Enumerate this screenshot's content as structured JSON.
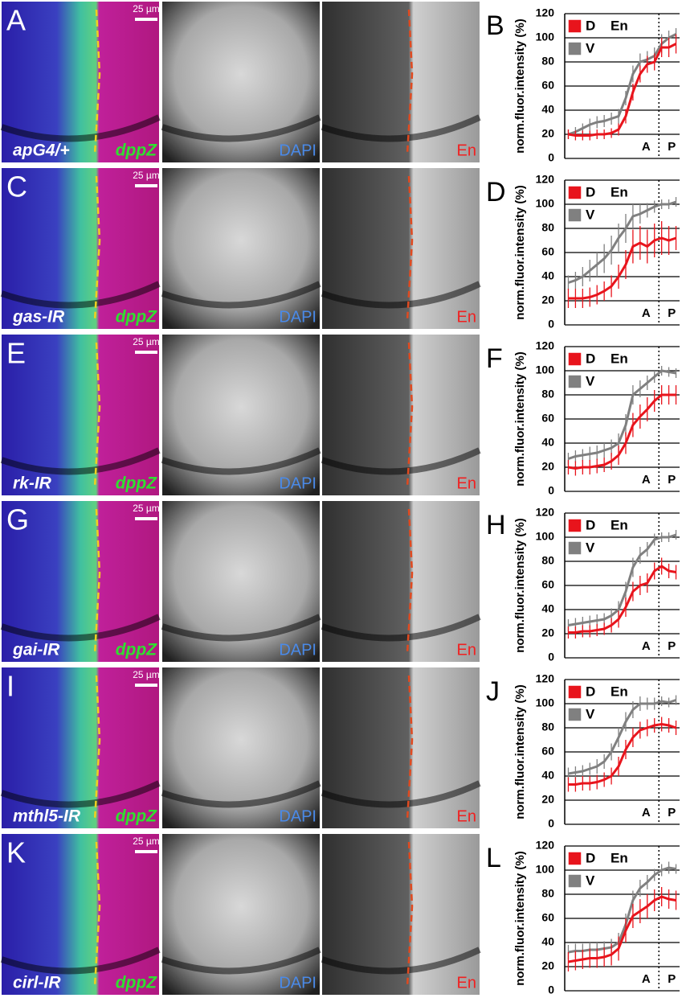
{
  "panels": [
    {
      "letter": "A",
      "genotype": "apG4/+",
      "reporter": "dppZ",
      "scale_bar": "25 µm",
      "channels": [
        "DAPI",
        "En"
      ]
    },
    {
      "letter": "C",
      "genotype": "gas-IR",
      "reporter": "dppZ",
      "scale_bar": "25 µm",
      "channels": [
        "DAPI",
        "En"
      ]
    },
    {
      "letter": "E",
      "genotype": "rk-IR",
      "reporter": "dppZ",
      "scale_bar": "25 µm",
      "channels": [
        "DAPI",
        "En"
      ]
    },
    {
      "letter": "G",
      "genotype": "gai-IR",
      "reporter": "dppZ",
      "scale_bar": "25 µm",
      "channels": [
        "DAPI",
        "En"
      ]
    },
    {
      "letter": "I",
      "genotype": "mthl5-IR",
      "reporter": "dppZ",
      "scale_bar": "25 µm",
      "channels": [
        "DAPI",
        "En"
      ]
    },
    {
      "letter": "K",
      "genotype": "cirl-IR",
      "reporter": "dppZ",
      "scale_bar": "25 µm",
      "channels": [
        "DAPI",
        "En"
      ]
    }
  ],
  "chart_data": [
    {
      "type": "line",
      "letter": "B",
      "y_label": "norm.fluor.intensity (%)",
      "legend_title": "En",
      "annotations": [
        "A",
        "P"
      ],
      "categories": [
        null,
        null,
        null,
        null,
        null,
        null,
        null,
        null,
        null,
        null,
        null,
        null,
        null,
        null,
        null,
        null
      ],
      "ylim": [
        0,
        120
      ],
      "yticks": [
        0,
        20,
        40,
        60,
        80,
        100,
        120
      ],
      "grid": true,
      "series": [
        {
          "name": "D",
          "color": "#e8141c",
          "values": [
            20,
            19,
            19,
            19,
            20,
            20,
            21,
            24,
            35,
            55,
            70,
            78,
            80,
            92,
            92,
            95
          ],
          "errors": [
            4,
            4,
            4,
            4,
            4,
            4,
            4,
            5,
            6,
            7,
            7,
            7,
            7,
            8,
            8,
            8
          ]
        },
        {
          "name": "V",
          "color": "#808080",
          "values": [
            20,
            22,
            25,
            28,
            30,
            31,
            33,
            35,
            50,
            70,
            80,
            82,
            85,
            95,
            100,
            103
          ],
          "errors": [
            4,
            4,
            4,
            5,
            5,
            5,
            5,
            6,
            6,
            7,
            7,
            7,
            7,
            8,
            6,
            5
          ]
        }
      ]
    },
    {
      "type": "line",
      "letter": "D",
      "y_label": "norm.fluor.intensity (%)",
      "legend_title": "En",
      "annotations": [
        "A",
        "P"
      ],
      "categories": [
        null,
        null,
        null,
        null,
        null,
        null,
        null,
        null,
        null,
        null,
        null,
        null,
        null,
        null,
        null,
        null
      ],
      "ylim": [
        0,
        120
      ],
      "yticks": [
        0,
        20,
        40,
        60,
        80,
        100,
        120
      ],
      "grid": true,
      "series": [
        {
          "name": "D",
          "color": "#e8141c",
          "values": [
            22,
            22,
            22,
            23,
            25,
            28,
            32,
            40,
            50,
            65,
            68,
            65,
            70,
            72,
            70,
            72
          ],
          "errors": [
            8,
            8,
            8,
            8,
            8,
            8,
            9,
            10,
            12,
            14,
            14,
            14,
            14,
            14,
            12,
            10
          ]
        },
        {
          "name": "V",
          "color": "#808080",
          "values": [
            35,
            37,
            40,
            45,
            50,
            55,
            62,
            72,
            80,
            90,
            92,
            95,
            98,
            100,
            100,
            102
          ],
          "errors": [
            6,
            7,
            8,
            9,
            10,
            12,
            12,
            12,
            12,
            10,
            8,
            6,
            5,
            4,
            4,
            4
          ]
        }
      ]
    },
    {
      "type": "line",
      "letter": "F",
      "y_label": "norm.fluor.intensity (%)",
      "legend_title": "En",
      "annotations": [
        "A",
        "P"
      ],
      "categories": [
        null,
        null,
        null,
        null,
        null,
        null,
        null,
        null,
        null,
        null,
        null,
        null,
        null,
        null,
        null,
        null
      ],
      "ylim": [
        0,
        120
      ],
      "yticks": [
        0,
        20,
        40,
        60,
        80,
        100,
        120
      ],
      "grid": true,
      "series": [
        {
          "name": "D",
          "color": "#e8141c",
          "values": [
            20,
            19,
            20,
            20,
            21,
            22,
            25,
            30,
            40,
            55,
            62,
            68,
            75,
            80,
            80,
            80
          ],
          "errors": [
            6,
            6,
            6,
            6,
            6,
            6,
            7,
            8,
            9,
            10,
            10,
            10,
            9,
            8,
            8,
            8
          ]
        },
        {
          "name": "V",
          "color": "#808080",
          "values": [
            27,
            29,
            30,
            31,
            32,
            34,
            36,
            40,
            55,
            80,
            85,
            90,
            95,
            100,
            99,
            98
          ],
          "errors": [
            5,
            5,
            5,
            6,
            6,
            6,
            7,
            8,
            9,
            8,
            7,
            6,
            5,
            4,
            4,
            4
          ]
        }
      ]
    },
    {
      "type": "line",
      "letter": "H",
      "y_label": "norm.fluor.intensity (%)",
      "legend_title": "En",
      "annotations": [
        "A",
        "P"
      ],
      "categories": [
        null,
        null,
        null,
        null,
        null,
        null,
        null,
        null,
        null,
        null,
        null,
        null,
        null,
        null,
        null,
        null
      ],
      "ylim": [
        0,
        120
      ],
      "yticks": [
        0,
        20,
        40,
        60,
        80,
        100,
        120
      ],
      "grid": true,
      "series": [
        {
          "name": "D",
          "color": "#e8141c",
          "values": [
            21,
            21,
            22,
            22,
            23,
            24,
            27,
            32,
            42,
            55,
            60,
            62,
            72,
            76,
            72,
            71
          ],
          "errors": [
            5,
            5,
            5,
            5,
            5,
            5,
            6,
            7,
            8,
            8,
            8,
            8,
            7,
            7,
            6,
            6
          ]
        },
        {
          "name": "V",
          "color": "#808080",
          "values": [
            27,
            28,
            29,
            30,
            31,
            32,
            35,
            40,
            55,
            75,
            85,
            90,
            98,
            100,
            100,
            102
          ],
          "errors": [
            5,
            5,
            5,
            5,
            5,
            5,
            6,
            7,
            8,
            8,
            7,
            6,
            5,
            4,
            4,
            4
          ]
        }
      ]
    },
    {
      "type": "line",
      "letter": "J",
      "y_label": "norm.fluor.intensity (%)",
      "legend_title": "En",
      "annotations": [
        "A",
        "P"
      ],
      "categories": [
        null,
        null,
        null,
        null,
        null,
        null,
        null,
        null,
        null,
        null,
        null,
        null,
        null,
        null,
        null,
        null
      ],
      "ylim": [
        0,
        120
      ],
      "yticks": [
        0,
        20,
        40,
        60,
        80,
        100,
        120
      ],
      "grid": true,
      "series": [
        {
          "name": "D",
          "color": "#e8141c",
          "values": [
            33,
            33,
            34,
            34,
            35,
            37,
            40,
            48,
            62,
            72,
            78,
            80,
            82,
            83,
            82,
            80
          ],
          "errors": [
            6,
            6,
            6,
            6,
            6,
            6,
            7,
            8,
            8,
            8,
            7,
            7,
            6,
            6,
            6,
            6
          ]
        },
        {
          "name": "V",
          "color": "#808080",
          "values": [
            42,
            43,
            44,
            46,
            48,
            52,
            60,
            72,
            85,
            95,
            100,
            100,
            100,
            102,
            101,
            103
          ],
          "errors": [
            5,
            5,
            5,
            5,
            6,
            6,
            7,
            8,
            8,
            7,
            6,
            5,
            5,
            4,
            4,
            4
          ]
        }
      ]
    },
    {
      "type": "line",
      "letter": "L",
      "y_label": "norm.fluor.intensity (%)",
      "legend_title": "En",
      "annotations": [
        "A",
        "P"
      ],
      "categories": [
        null,
        null,
        null,
        null,
        null,
        null,
        null,
        null,
        null,
        null,
        null,
        null,
        null,
        null,
        null,
        null
      ],
      "ylim": [
        0,
        120
      ],
      "yticks": [
        0,
        20,
        40,
        60,
        80,
        100,
        120
      ],
      "grid": true,
      "series": [
        {
          "name": "D",
          "color": "#e8141c",
          "values": [
            24,
            25,
            26,
            27,
            27,
            28,
            30,
            35,
            50,
            62,
            66,
            70,
            75,
            78,
            76,
            75
          ],
          "errors": [
            8,
            8,
            8,
            8,
            8,
            8,
            9,
            10,
            10,
            10,
            10,
            10,
            9,
            8,
            8,
            8
          ]
        },
        {
          "name": "V",
          "color": "#808080",
          "values": [
            32,
            33,
            33,
            34,
            34,
            35,
            36,
            40,
            55,
            75,
            85,
            90,
            96,
            100,
            102,
            101
          ],
          "errors": [
            6,
            6,
            6,
            6,
            6,
            6,
            7,
            8,
            9,
            8,
            7,
            6,
            5,
            5,
            5,
            4
          ]
        }
      ]
    }
  ]
}
